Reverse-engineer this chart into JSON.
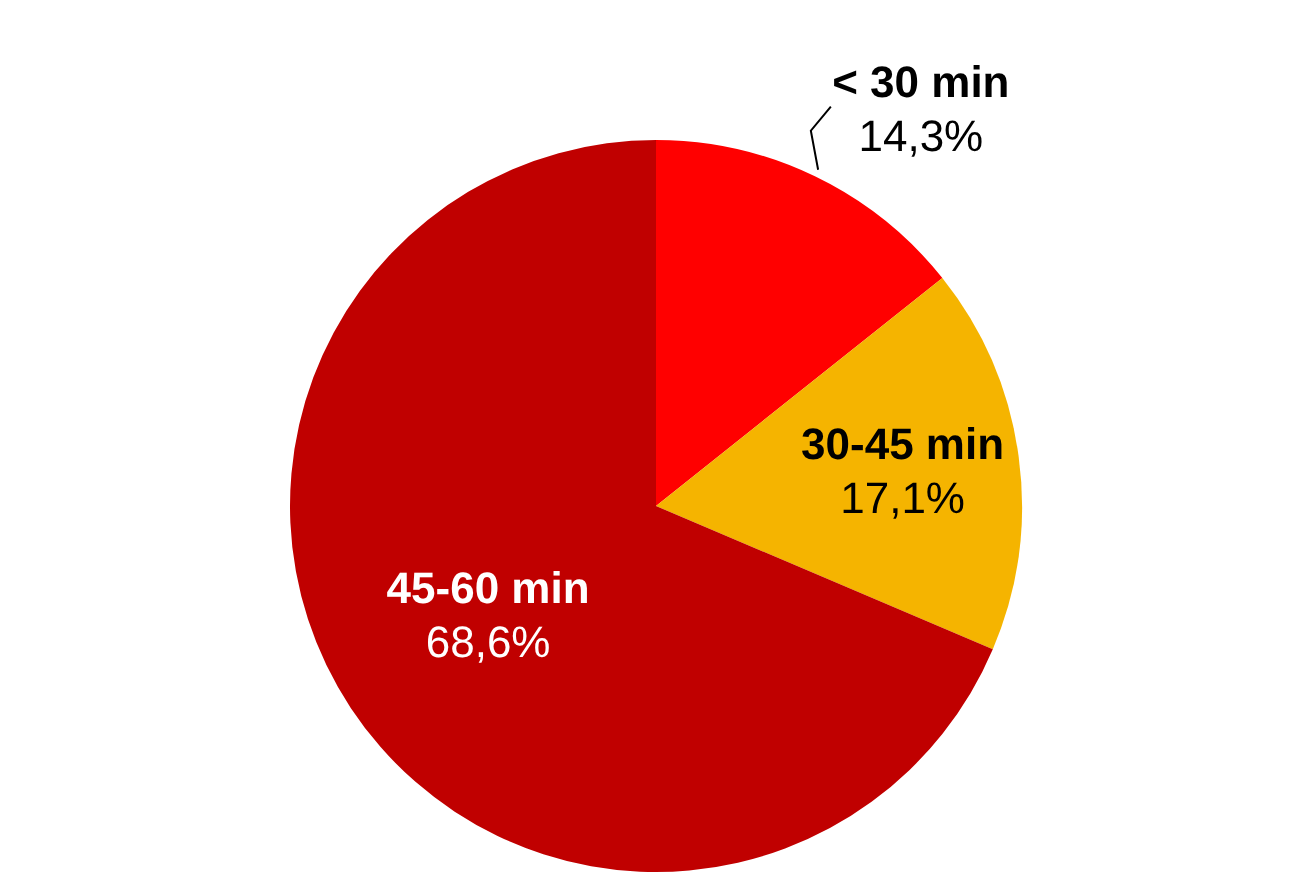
{
  "chart_data": {
    "type": "pie",
    "categories": [
      "< 30 min",
      "30-45 min",
      "45-60 min"
    ],
    "values": [
      14.3,
      17.1,
      68.6
    ],
    "value_labels": [
      "14,3%",
      "17,1%",
      "68,6%"
    ],
    "colors": [
      "#ff0000",
      "#f5b400",
      "#c00000"
    ],
    "legend": false
  }
}
